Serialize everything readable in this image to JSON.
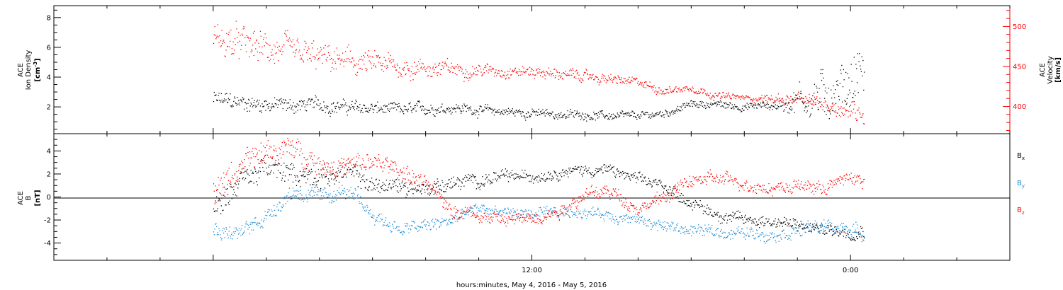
{
  "chart_data": [
    {
      "type": "scatter",
      "panel": "top",
      "left_axis": {
        "label_line1": "ACE",
        "label_line2": "Ion Density",
        "unit": "[cm",
        "unit_sup": "-3",
        "unit_close": "]",
        "ticks": [
          "2",
          "4",
          "6",
          "8"
        ],
        "ylim": [
          0.2,
          8.8
        ],
        "color": "#000000"
      },
      "right_axis": {
        "label_line1": "ACE",
        "label_line2": "Velocity",
        "unit": "[km/s]",
        "ticks": [
          "400",
          "450",
          "500"
        ],
        "ylim": [
          366,
          526
        ],
        "color": "#ff0000"
      },
      "series": [
        {
          "axis": "left",
          "color": "#000000",
          "profile": [
            [
              0,
              2.5
            ],
            [
              1,
              2.3
            ],
            [
              2,
              2.2
            ],
            [
              3,
              2.1
            ],
            [
              4,
              2.2
            ],
            [
              5,
              2.0
            ],
            [
              6,
              1.9
            ],
            [
              7,
              1.8
            ],
            [
              8,
              1.9
            ],
            [
              9,
              2.0
            ],
            [
              10,
              1.8
            ],
            [
              11,
              1.7
            ],
            [
              12,
              1.6
            ],
            [
              13,
              1.5
            ],
            [
              14,
              1.5
            ],
            [
              15,
              1.4
            ],
            [
              16,
              1.4
            ],
            [
              17,
              1.6
            ],
            [
              18,
              2.2
            ],
            [
              19,
              2.2
            ],
            [
              20,
              2.0
            ],
            [
              20.5,
              2.1
            ],
            [
              21,
              2.1
            ],
            [
              21.5,
              2.2
            ],
            [
              22,
              2.6
            ],
            [
              22.5,
              2.6
            ],
            [
              23,
              2.9
            ],
            [
              23.5,
              3.2
            ],
            [
              24,
              3.8
            ],
            [
              24.5,
              4.6
            ]
          ],
          "spread": [
            [
              0,
              0.6
            ],
            [
              10,
              0.35
            ],
            [
              18,
              0.25
            ],
            [
              21,
              0.3
            ],
            [
              22.5,
              1.4
            ],
            [
              24.5,
              2.0
            ]
          ]
        },
        {
          "axis": "right",
          "color": "#ff0000",
          "profile": [
            [
              0,
              485
            ],
            [
              1,
              478
            ],
            [
              2,
              472
            ],
            [
              3,
              466
            ],
            [
              4,
              460
            ],
            [
              5,
              456
            ],
            [
              6,
              452
            ],
            [
              7,
              450
            ],
            [
              8,
              448
            ],
            [
              9,
              447
            ],
            [
              10,
              446
            ],
            [
              11,
              445
            ],
            [
              12,
              444
            ],
            [
              13,
              441
            ],
            [
              14,
              438
            ],
            [
              15,
              434
            ],
            [
              16,
              430
            ],
            [
              17,
              420
            ],
            [
              18,
              424
            ],
            [
              19,
              414
            ],
            [
              20,
              411
            ],
            [
              21,
              410
            ],
            [
              22,
              408
            ],
            [
              23,
              403
            ],
            [
              24,
              396
            ],
            [
              24.5,
              392
            ]
          ],
          "spread": [
            [
              0,
              22
            ],
            [
              6,
              16
            ],
            [
              10,
              8
            ],
            [
              16,
              6
            ],
            [
              20,
              4
            ],
            [
              22,
              8
            ],
            [
              24.5,
              14
            ]
          ]
        }
      ]
    },
    {
      "type": "scatter",
      "panel": "bottom",
      "left_axis": {
        "label_line1": "ACE",
        "label_line2": "B",
        "unit": "[nT]",
        "ticks": [
          "-4",
          "-2",
          "0",
          "2",
          "4"
        ],
        "ylim": [
          -5.5,
          5.5
        ],
        "color": "#000000"
      },
      "zero_line": true,
      "series": [
        {
          "name": "B",
          "subscript": "x",
          "color": "#000000",
          "profile": [
            [
              0,
              -1
            ],
            [
              1,
              1.5
            ],
            [
              2,
              2.5
            ],
            [
              3,
              2
            ],
            [
              4,
              1.8
            ],
            [
              5,
              2.2
            ],
            [
              6,
              1
            ],
            [
              7,
              1
            ],
            [
              8,
              0.8
            ],
            [
              9,
              1.2
            ],
            [
              10,
              1.5
            ],
            [
              11,
              1.8
            ],
            [
              12,
              1.8
            ],
            [
              13,
              2.2
            ],
            [
              14,
              2.4
            ],
            [
              15,
              2.3
            ],
            [
              16,
              1.5
            ],
            [
              17,
              1
            ],
            [
              18,
              -0.5
            ],
            [
              19,
              -1.5
            ],
            [
              20,
              -2
            ],
            [
              21,
              -2
            ],
            [
              22,
              -2.5
            ],
            [
              23,
              -2.8
            ],
            [
              24,
              -3
            ],
            [
              24.5,
              -2.8
            ]
          ],
          "spread": [
            [
              0,
              1.2
            ],
            [
              12,
              0.5
            ],
            [
              24.5,
              0.6
            ]
          ]
        },
        {
          "name": "B",
          "subscript": "y",
          "color": "#1a8ad4",
          "profile": [
            [
              0,
              -2.8
            ],
            [
              1,
              -3.2
            ],
            [
              2,
              -1.5
            ],
            [
              3,
              0.5
            ],
            [
              4,
              0
            ],
            [
              5,
              0.5
            ],
            [
              6,
              -1.5
            ],
            [
              7,
              -2.8
            ],
            [
              8,
              -2.5
            ],
            [
              9,
              -2
            ],
            [
              10,
              -1
            ],
            [
              11,
              -1.3
            ],
            [
              12,
              -1.5
            ],
            [
              13,
              -1.4
            ],
            [
              14,
              -1.2
            ],
            [
              15,
              -1.6
            ],
            [
              16,
              -2
            ],
            [
              17,
              -2.5
            ],
            [
              18,
              -2.9
            ],
            [
              19,
              -3
            ],
            [
              20,
              -3.1
            ],
            [
              21,
              -3.2
            ],
            [
              22,
              -2.9
            ],
            [
              23,
              -2.5
            ],
            [
              24,
              -2.8
            ],
            [
              24.5,
              -3.3
            ]
          ],
          "spread": [
            [
              0,
              0.8
            ],
            [
              12,
              0.5
            ],
            [
              24.5,
              0.6
            ]
          ]
        },
        {
          "name": "B",
          "subscript": "z",
          "color": "#ff0000",
          "profile": [
            [
              0,
              0.5
            ],
            [
              1,
              2.5
            ],
            [
              2,
              4
            ],
            [
              3,
              4.2
            ],
            [
              4,
              3
            ],
            [
              5,
              2.6
            ],
            [
              6,
              3
            ],
            [
              7,
              2.5
            ],
            [
              8,
              1
            ],
            [
              9,
              -1
            ],
            [
              10,
              -1.5
            ],
            [
              11,
              -2
            ],
            [
              12,
              -1.8
            ],
            [
              13,
              -1.2
            ],
            [
              14,
              0.3
            ],
            [
              15,
              0.5
            ],
            [
              16,
              -1
            ],
            [
              17,
              0
            ],
            [
              18,
              1.5
            ],
            [
              19,
              1.6
            ],
            [
              20,
              1.2
            ],
            [
              21,
              0.8
            ],
            [
              22,
              1
            ],
            [
              23,
              0.8
            ],
            [
              24,
              1.8
            ],
            [
              24.5,
              1.4
            ]
          ],
          "spread": [
            [
              0,
              1.2
            ],
            [
              12,
              0.6
            ],
            [
              24.5,
              0.6
            ]
          ]
        }
      ]
    }
  ],
  "x_axis": {
    "range_hours": [
      -6,
      30
    ],
    "tick_labels": [
      {
        "hour": 12,
        "label": "12:00"
      },
      {
        "hour": 24,
        "label": "0:00"
      }
    ],
    "data_span_hours": [
      0,
      24.5
    ],
    "title": "hours:minutes, May  4, 2016 - May  5, 2016"
  },
  "legend": [
    {
      "text": "B",
      "sub": "x",
      "color": "#000000"
    },
    {
      "text": "B",
      "sub": "y",
      "color": "#1a8ad4"
    },
    {
      "text": "B",
      "sub": "z",
      "color": "#ff0000"
    }
  ]
}
